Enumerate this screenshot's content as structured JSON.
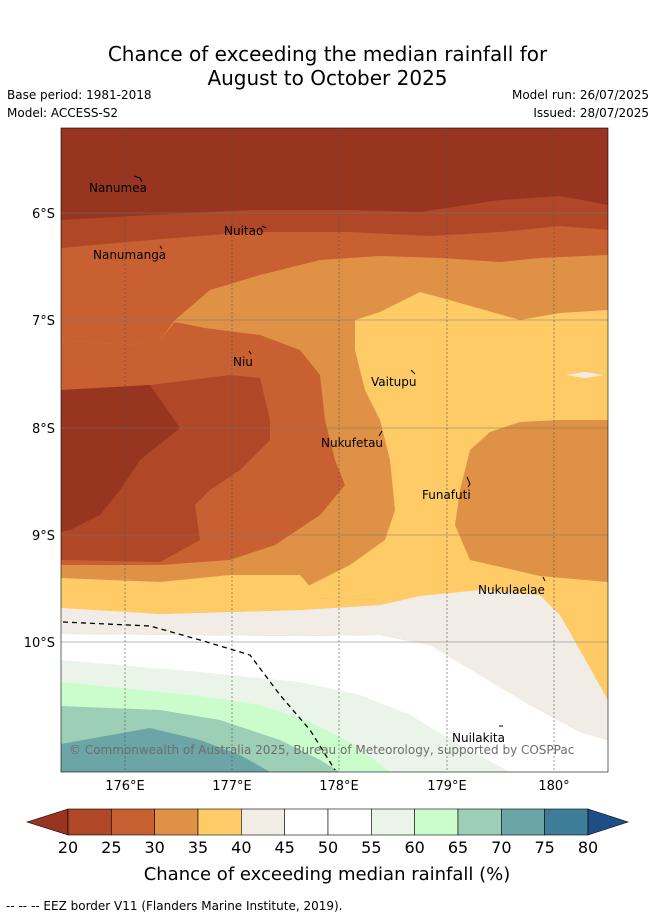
{
  "header": {
    "title_line1": "Chance of exceeding the median rainfall for",
    "title_line2": "August to October 2025",
    "base_period": "Base period: 1981-2018",
    "model": "Model: ACCESS-S2",
    "model_run": "Model run: 26/07/2025",
    "issued": "Issued: 28/07/2025"
  },
  "map": {
    "lon_ticks": [
      "176°E",
      "177°E",
      "178°E",
      "179°E",
      "180°"
    ],
    "lat_ticks": [
      "6°S",
      "7°S",
      "8°S",
      "9°S",
      "10°S"
    ],
    "places": [
      "Nanumea",
      "Nuitao",
      "Nanumanga",
      "Niu",
      "Vaitupu",
      "Nukufetau",
      "Funafuti",
      "Nukulaelae",
      "Nuilakita"
    ],
    "credit": "© Commonwealth of Australia 2025, Bureau of Meteorology, supported by COSPPac"
  },
  "colorbar": {
    "ticks": [
      "20",
      "25",
      "30",
      "35",
      "40",
      "45",
      "50",
      "55",
      "60",
      "65",
      "70",
      "75",
      "80"
    ],
    "colors": [
      "#b04827",
      "#c96032",
      "#df9245",
      "#fecb66",
      "#f1ede6",
      "#ffffff",
      "#ffffff",
      "#eaf4e8",
      "#cafdcb",
      "#9dcfb7",
      "#6ca5a5",
      "#3e7d98"
    ],
    "under_color": "#973520",
    "over_color": "#1d4f86",
    "label": "Chance of exceeding median rainfall (%)"
  },
  "footer": {
    "text": "-- -- -- EEZ border V11 (Flanders Marine Institute, 2019)."
  }
}
